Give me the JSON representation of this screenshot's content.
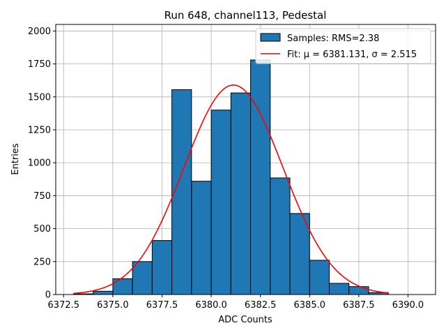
{
  "chart_data": {
    "type": "bar",
    "title": "Run 648, channel113, Pedestal",
    "xlabel": "ADC Counts",
    "ylabel": "Entries",
    "xlim": [
      6372.1,
      6391.4
    ],
    "ylim": [
      0,
      2050
    ],
    "grid": true,
    "legend_position": "top-right",
    "bin_width": 1,
    "bins": [
      {
        "x0": 6373,
        "value": 5
      },
      {
        "x0": 6374,
        "value": 25
      },
      {
        "x0": 6375,
        "value": 120
      },
      {
        "x0": 6376,
        "value": 250
      },
      {
        "x0": 6377,
        "value": 410
      },
      {
        "x0": 6378,
        "value": 1555
      },
      {
        "x0": 6379,
        "value": 860
      },
      {
        "x0": 6380,
        "value": 1400
      },
      {
        "x0": 6381,
        "value": 1530
      },
      {
        "x0": 6382,
        "value": 1780
      },
      {
        "x0": 6383,
        "value": 885
      },
      {
        "x0": 6384,
        "value": 615
      },
      {
        "x0": 6385,
        "value": 260
      },
      {
        "x0": 6386,
        "value": 85
      },
      {
        "x0": 6387,
        "value": 60
      },
      {
        "x0": 6388,
        "value": 15
      }
    ],
    "fit": {
      "mu": 6381.131,
      "sigma": 2.515,
      "amplitude": 1590,
      "x_range": [
        6373,
        6389
      ]
    },
    "xticks": [
      "6372.5",
      "6375.0",
      "6377.5",
      "6380.0",
      "6382.5",
      "6385.0",
      "6387.5",
      "6390.0"
    ],
    "xtick_values": [
      6372.5,
      6375.0,
      6377.5,
      6380.0,
      6382.5,
      6385.0,
      6387.5,
      6390.0
    ],
    "yticks": [
      "0",
      "250",
      "500",
      "750",
      "1000",
      "1250",
      "1500",
      "1750",
      "2000"
    ],
    "ytick_values": [
      0,
      250,
      500,
      750,
      1000,
      1250,
      1500,
      1750,
      2000
    ],
    "legend": [
      {
        "label": "Samples: RMS=2.38",
        "color": "#1f77b4",
        "kind": "patch"
      },
      {
        "label": "Fit: μ = 6381.131, σ = 2.515",
        "color": "#ff0000",
        "kind": "line"
      }
    ],
    "colors": {
      "bar": "#1f77b4",
      "bar_edge": "#000000",
      "fit": "#ff0000",
      "grid": "#b0b0b0"
    }
  }
}
